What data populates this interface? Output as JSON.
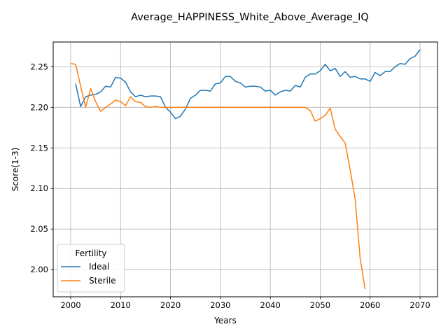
{
  "chart_data": {
    "type": "line",
    "title": "Average_HAPPINESS_White_Above_Average_IQ",
    "xlabel": "Years",
    "ylabel": "Score(1-3)",
    "xlim": [
      1996.5,
      2073.5
    ],
    "ylim": [
      1.9665,
      2.2805
    ],
    "x_ticks": [
      2000,
      2010,
      2020,
      2030,
      2040,
      2050,
      2060,
      2070
    ],
    "y_ticks": [
      2.0,
      2.05,
      2.1,
      2.15,
      2.2,
      2.25
    ],
    "y_tick_labels": [
      "2.00",
      "2.05",
      "2.10",
      "2.15",
      "2.20",
      "2.25"
    ],
    "grid": true,
    "legend": {
      "title": "Fertility",
      "placement": "lower-left"
    },
    "series": [
      {
        "name": "Ideal",
        "color": "#1f77b4",
        "x": [
          2001,
          2002,
          2003,
          2004,
          2005,
          2006,
          2007,
          2008,
          2009,
          2010,
          2011,
          2012,
          2013,
          2014,
          2015,
          2016,
          2017,
          2018,
          2019,
          2020,
          2021,
          2022,
          2023,
          2024,
          2025,
          2026,
          2027,
          2028,
          2029,
          2030,
          2031,
          2032,
          2033,
          2034,
          2035,
          2036,
          2037,
          2038,
          2039,
          2040,
          2041,
          2042,
          2043,
          2044,
          2045,
          2046,
          2047,
          2048,
          2049,
          2050,
          2051,
          2052,
          2053,
          2054,
          2055,
          2056,
          2057,
          2058,
          2059,
          2060,
          2061,
          2062,
          2063,
          2064,
          2065,
          2066,
          2067,
          2068,
          2069,
          2070
        ],
        "values": [
          2.229,
          2.201,
          2.213,
          2.215,
          2.216,
          2.219,
          2.226,
          2.225,
          2.237,
          2.236,
          2.231,
          2.219,
          2.213,
          2.215,
          2.213,
          2.214,
          2.214,
          2.213,
          2.2,
          2.194,
          2.186,
          2.189,
          2.198,
          2.211,
          2.215,
          2.221,
          2.221,
          2.22,
          2.229,
          2.23,
          2.238,
          2.238,
          2.232,
          2.23,
          2.225,
          2.226,
          2.226,
          2.225,
          2.22,
          2.221,
          2.215,
          2.219,
          2.221,
          2.22,
          2.227,
          2.225,
          2.237,
          2.241,
          2.241,
          2.245,
          2.253,
          2.245,
          2.248,
          2.238,
          2.244,
          2.237,
          2.238,
          2.235,
          2.235,
          2.232,
          2.243,
          2.239,
          2.244,
          2.244,
          2.25,
          2.254,
          2.253,
          2.26,
          2.263,
          2.271
        ]
      },
      {
        "name": "Sterile",
        "color": "#ff7f0e",
        "x": [
          2000,
          2001,
          2002,
          2003,
          2004,
          2005,
          2006,
          2007,
          2008,
          2009,
          2010,
          2011,
          2012,
          2013,
          2014,
          2015,
          2016,
          2017,
          2018,
          2019,
          2020,
          2021,
          2022,
          2023,
          2024,
          2025,
          2026,
          2027,
          2028,
          2029,
          2030,
          2031,
          2032,
          2033,
          2034,
          2035,
          2036,
          2037,
          2038,
          2039,
          2040,
          2041,
          2042,
          2043,
          2044,
          2045,
          2046,
          2047,
          2048,
          2049,
          2050,
          2051,
          2052,
          2053,
          2054,
          2055,
          2056,
          2057,
          2058,
          2059
        ],
        "values": [
          2.254,
          2.253,
          2.226,
          2.2,
          2.223,
          2.207,
          2.195,
          2.2,
          2.204,
          2.209,
          2.207,
          2.202,
          2.213,
          2.207,
          2.206,
          2.201,
          2.2,
          2.201,
          2.2,
          2.2,
          2.2,
          2.2,
          2.2,
          2.2,
          2.2,
          2.2,
          2.2,
          2.2,
          2.2,
          2.2,
          2.2,
          2.2,
          2.2,
          2.2,
          2.2,
          2.2,
          2.2,
          2.2,
          2.2,
          2.2,
          2.2,
          2.2,
          2.2,
          2.2,
          2.2,
          2.2,
          2.2,
          2.2,
          2.196,
          2.183,
          2.186,
          2.19,
          2.199,
          2.173,
          2.164,
          2.156,
          2.123,
          2.087,
          2.014,
          1.976
        ]
      }
    ]
  }
}
